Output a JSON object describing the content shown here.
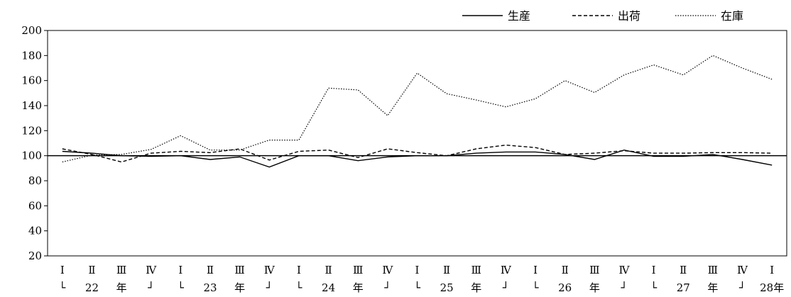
{
  "chart_data": {
    "type": "line",
    "title": "",
    "xlabel": "",
    "ylabel": "",
    "ylim": [
      20,
      200
    ],
    "yticks": [
      20,
      40,
      60,
      80,
      100,
      120,
      140,
      160,
      180,
      200
    ],
    "reference_line": 100,
    "legend_position": "top-right",
    "grid": false,
    "x_quarters": [
      "Ⅰ",
      "Ⅱ",
      "Ⅲ",
      "Ⅳ",
      "Ⅰ",
      "Ⅱ",
      "Ⅲ",
      "Ⅳ",
      "Ⅰ",
      "Ⅱ",
      "Ⅲ",
      "Ⅳ",
      "Ⅰ",
      "Ⅱ",
      "Ⅲ",
      "Ⅳ",
      "Ⅰ",
      "Ⅱ",
      "Ⅲ",
      "Ⅳ",
      "Ⅰ",
      "Ⅱ",
      "Ⅲ",
      "Ⅳ",
      "Ⅰ"
    ],
    "x_year_row": [
      "└",
      "22",
      "年",
      "┘",
      "└",
      "23",
      "年",
      "┘",
      "└",
      "24",
      "年",
      "┘",
      "└",
      "25",
      "年",
      "┘",
      "└",
      "26",
      "年",
      "┘",
      "└",
      "27",
      "年",
      "┘",
      "28年"
    ],
    "series": [
      {
        "name": "生産",
        "style": "solid",
        "values": [
          103.5,
          102,
          100,
          99.5,
          100,
          97,
          99,
          91,
          100,
          100,
          96,
          99,
          100,
          100,
          102,
          103,
          103,
          101,
          97,
          104.5,
          99.5,
          99.5,
          101,
          97,
          92.5
        ]
      },
      {
        "name": "出荷",
        "style": "dashed",
        "values": [
          105.5,
          101,
          95,
          102,
          103.5,
          102.5,
          105.5,
          96.5,
          103.5,
          104.5,
          98.5,
          105.5,
          102.5,
          100,
          105.5,
          108.5,
          106.5,
          101,
          102,
          104,
          102,
          102,
          102.5,
          102.5,
          102
        ]
      },
      {
        "name": "在庫",
        "style": "dotted",
        "values": [
          95,
          100.5,
          101,
          105,
          116,
          104.5,
          104.5,
          112.5,
          112.5,
          154,
          152.5,
          132,
          166,
          149.5,
          144.5,
          139,
          145.5,
          160,
          150.5,
          164.5,
          172.5,
          164.5,
          180,
          170,
          161
        ]
      }
    ]
  }
}
